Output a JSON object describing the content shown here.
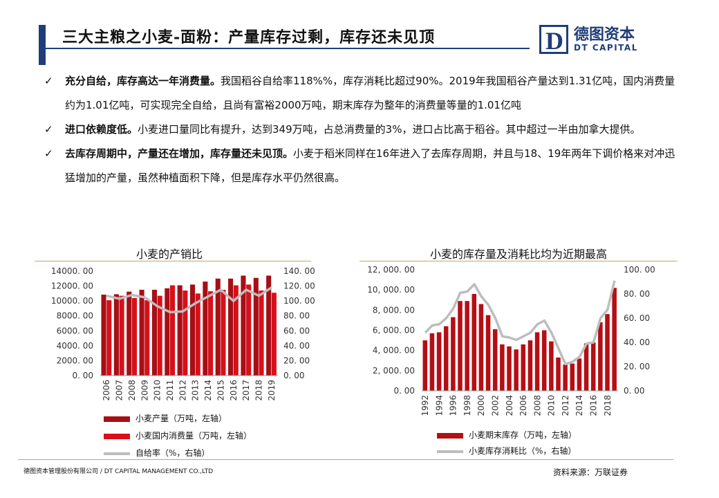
{
  "header": {
    "title": "三大主粮之小麦-面粉：产量库存过剩，库存还未见顶",
    "logo_letter": "D",
    "logo_cn": "德图资本",
    "logo_en": "DT CAPITAL"
  },
  "bullets": [
    {
      "bold": "充分自给，库存高达一年消费量。",
      "text": "我国稻谷自给率118%%，库存消耗比超过90%。2019年我国稻谷产量达到1.31亿吨，国内消费量约为1.01亿吨，可实现完全自给，且尚有富裕2000万吨，期末库存为整年的消费量等量的1.01亿吨"
    },
    {
      "bold": "进口依赖度低。",
      "text": "小麦进口量同比有提升，达到349万吨，占总消费量的3%，进口占比高于稻谷。其中超过一半由加拿大提供。"
    },
    {
      "bold": "去库存周期中，产量还在增加，库存量还未见顶。",
      "text": "小麦于稻米同样在16年进入了去库存周期，并且与18、19年两年下调价格来对冲迅猛增加的产量，虽然种植面积下降，但是库存水平仍然很高。"
    }
  ],
  "chart_data": [
    {
      "type": "bar",
      "title": "小麦的产销比",
      "categories": [
        "2006",
        "2007",
        "2008",
        "2009",
        "2010",
        "2011",
        "2012",
        "2013",
        "2014",
        "2015",
        "2016",
        "2017",
        "2018",
        "2019"
      ],
      "left_ticks": [
        "14000. 00",
        "12000. 00",
        "10000. 00",
        "8000. 00",
        "6000. 00",
        "4000. 00",
        "2000. 00",
        "0. 00"
      ],
      "right_ticks": [
        "140. 00",
        "120. 00",
        "100. 00",
        "80. 00",
        "60. 00",
        "40. 00",
        "20. 00",
        "0. 00"
      ],
      "ylim_left": [
        0,
        14000
      ],
      "ylim_right": [
        0,
        140
      ],
      "series": [
        {
          "name": "小麦产量（万吨，左轴）",
          "type": "bar",
          "axis": "left",
          "color": "#a50f15",
          "values": [
            10850,
            10900,
            11250,
            11500,
            11500,
            11700,
            12100,
            12200,
            12600,
            13000,
            13000,
            13400,
            13100,
            13400
          ]
        },
        {
          "name": "小麦国内消费量（万吨，左轴）",
          "type": "bar",
          "axis": "left",
          "color": "#d7101a",
          "values": [
            10100,
            10700,
            10400,
            10100,
            10700,
            12100,
            11400,
            11000,
            11300,
            11500,
            12100,
            12200,
            11400,
            11100
          ]
        },
        {
          "name": "自给率（%，右轴）",
          "type": "line",
          "axis": "right",
          "color": "#bdbdbd",
          "values": [
            107,
            103,
            108,
            105,
            93,
            85,
            86,
            97,
            106,
            115,
            100,
            115,
            107,
            118
          ]
        }
      ]
    },
    {
      "type": "bar",
      "title": "小麦的库存量及消耗比均为近期最高",
      "categories": [
        "1992",
        "1993",
        "1994",
        "1995",
        "1996",
        "1997",
        "1998",
        "1999",
        "2000",
        "2001",
        "2002",
        "2003",
        "2004",
        "2005",
        "2006",
        "2007",
        "2008",
        "2009",
        "2010",
        "2011",
        "2012",
        "2013",
        "2014",
        "2015",
        "2016",
        "2017",
        "2018",
        "2019"
      ],
      "x_tick_labels": [
        "1992",
        "1994",
        "1996",
        "1998",
        "2000",
        "2002",
        "2004",
        "2006",
        "2008",
        "2010",
        "2012",
        "2014",
        "2016",
        "2018"
      ],
      "left_ticks": [
        "12, 000. 00",
        "10, 000. 00",
        "8, 000. 00",
        "6, 000. 00",
        "4, 000. 00",
        "2, 000. 00",
        "0. 00"
      ],
      "right_ticks": [
        "100. 00",
        "80. 00",
        "60. 00",
        "40. 00",
        "20. 00",
        "0. 00"
      ],
      "ylim_left": [
        0,
        12000
      ],
      "ylim_right": [
        0,
        100
      ],
      "series": [
        {
          "name": "小麦期末库存（万吨，左轴）",
          "type": "bar",
          "axis": "left",
          "color": "#b40f15",
          "values": [
            5000,
            5700,
            5800,
            6400,
            7300,
            8900,
            8900,
            9600,
            8600,
            7500,
            6100,
            4600,
            4400,
            4100,
            4600,
            5000,
            5800,
            6000,
            4900,
            3300,
            2600,
            2700,
            3200,
            4700,
            4800,
            6800,
            7600,
            10200
          ]
        },
        {
          "name": "小麦库存消耗比（%，右轴）",
          "type": "line",
          "axis": "right",
          "color": "#bdbdbd",
          "values": [
            48,
            54,
            55,
            60,
            68,
            81,
            82,
            88,
            78,
            71,
            60,
            45,
            44,
            42,
            45,
            48,
            55,
            58,
            48,
            35,
            22,
            24,
            28,
            39,
            40,
            60,
            67,
            91
          ]
        }
      ]
    }
  ],
  "footer": {
    "left": "德图资本管理股份有限公司 / DT CAPITAL MANAGEMENT CO.,LTD",
    "source": "资料来源：万联证券"
  }
}
